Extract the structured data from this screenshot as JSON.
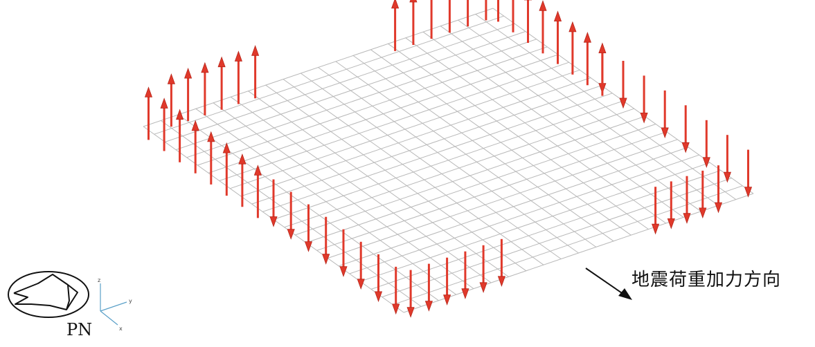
{
  "direction_label": "地震荷重加力方向",
  "view_label": "PN",
  "axis_labels": {
    "z": "z",
    "y": "y",
    "x": "x"
  },
  "colors": {
    "grid": "#b8b8b8",
    "load_arrow": "#e0392b",
    "text": "#111111"
  },
  "mesh": {
    "divisions_u": 20,
    "divisions_v": 24
  },
  "load_groups": [
    {
      "edge": "left",
      "direction": "up",
      "count": 8
    },
    {
      "edge": "front",
      "direction": "down",
      "count": 8
    },
    {
      "edge": "front",
      "direction": "down",
      "count": 6
    },
    {
      "edge": "right",
      "direction": "down",
      "count": 5
    },
    {
      "edge": "right",
      "direction": "down",
      "count": 8
    },
    {
      "edge": "back",
      "direction": "up",
      "count": 8
    },
    {
      "edge": "back",
      "direction": "up",
      "count": 6
    },
    {
      "edge": "left",
      "direction": "up",
      "count": 6
    }
  ]
}
